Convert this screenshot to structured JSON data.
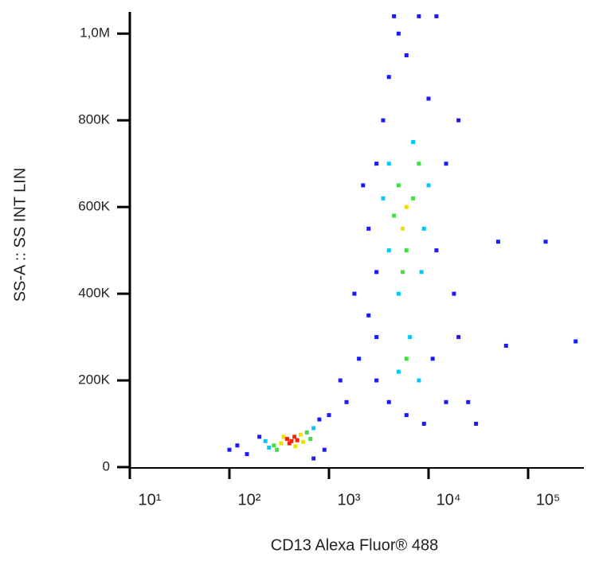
{
  "chart_data": {
    "type": "scatter",
    "x_label": "CD13 Alexa Fluor® 488",
    "y_label": "SS-A :: SS INT LIN",
    "xscale": "log",
    "xlim": [
      10,
      363000
    ],
    "ylim": [
      0,
      1050000
    ],
    "xticks": [
      {
        "value": 10,
        "label": "10¹"
      },
      {
        "value": 100,
        "label": "10²"
      },
      {
        "value": 1000,
        "label": "10³"
      },
      {
        "value": 10000,
        "label": "10⁴"
      },
      {
        "value": 100000,
        "label": "10⁵"
      }
    ],
    "yticks": [
      {
        "value": 0,
        "label": "0"
      },
      {
        "value": 200000,
        "label": "200K"
      },
      {
        "value": 400000,
        "label": "400K"
      },
      {
        "value": 600000,
        "label": "600K"
      },
      {
        "value": 800000,
        "label": "800K"
      },
      {
        "value": 1000000,
        "label": "1,0M"
      }
    ],
    "series": [
      {
        "color": "#1a1aff",
        "x": [
          150,
          200,
          800,
          900,
          120,
          1000,
          1500,
          2000,
          2500,
          3000,
          3500,
          4000,
          5000,
          6000,
          3000,
          12000,
          15000,
          20000,
          25000,
          15000,
          4000,
          3000,
          20000,
          10000,
          2500,
          1800,
          1300,
          50000,
          150000,
          300000,
          60000,
          30000,
          4500,
          8000,
          12000,
          3000,
          2200,
          11000,
          9000,
          6000,
          18000,
          700,
          100
        ],
        "y": [
          30000,
          70000,
          110000,
          40000,
          50000,
          120000,
          150000,
          250000,
          350000,
          450000,
          800000,
          900000,
          1000000,
          950000,
          300000,
          500000,
          700000,
          300000,
          150000,
          150000,
          150000,
          200000,
          800000,
          850000,
          550000,
          400000,
          200000,
          520000,
          520000,
          290000,
          280000,
          100000,
          1040000,
          1040000,
          1040000,
          700000,
          650000,
          250000,
          100000,
          120000,
          400000,
          20000,
          40000
        ]
      },
      {
        "color": "#00c8ff",
        "x": [
          250,
          700,
          230,
          4000,
          9000,
          5000,
          7000,
          4000,
          10000,
          5000,
          8000,
          6500,
          3500,
          8500
        ],
        "y": [
          45000,
          90000,
          60000,
          700000,
          550000,
          400000,
          750000,
          500000,
          650000,
          220000,
          200000,
          300000,
          620000,
          450000
        ]
      },
      {
        "color": "#40e040",
        "x": [
          280,
          600,
          300,
          650,
          5000,
          7000,
          6000,
          4500,
          8000,
          5500,
          6000
        ],
        "y": [
          50000,
          80000,
          40000,
          65000,
          650000,
          620000,
          500000,
          580000,
          700000,
          450000,
          250000
        ]
      },
      {
        "color": "#f0e000",
        "x": [
          330,
          520,
          350,
          550,
          460,
          6000,
          5500
        ],
        "y": [
          55000,
          75000,
          70000,
          58000,
          48000,
          600000,
          550000
        ]
      },
      {
        "color": "#ff2000",
        "x": [
          380,
          420,
          450,
          400,
          480
        ],
        "y": [
          65000,
          60000,
          70000,
          55000,
          62000
        ]
      }
    ]
  }
}
